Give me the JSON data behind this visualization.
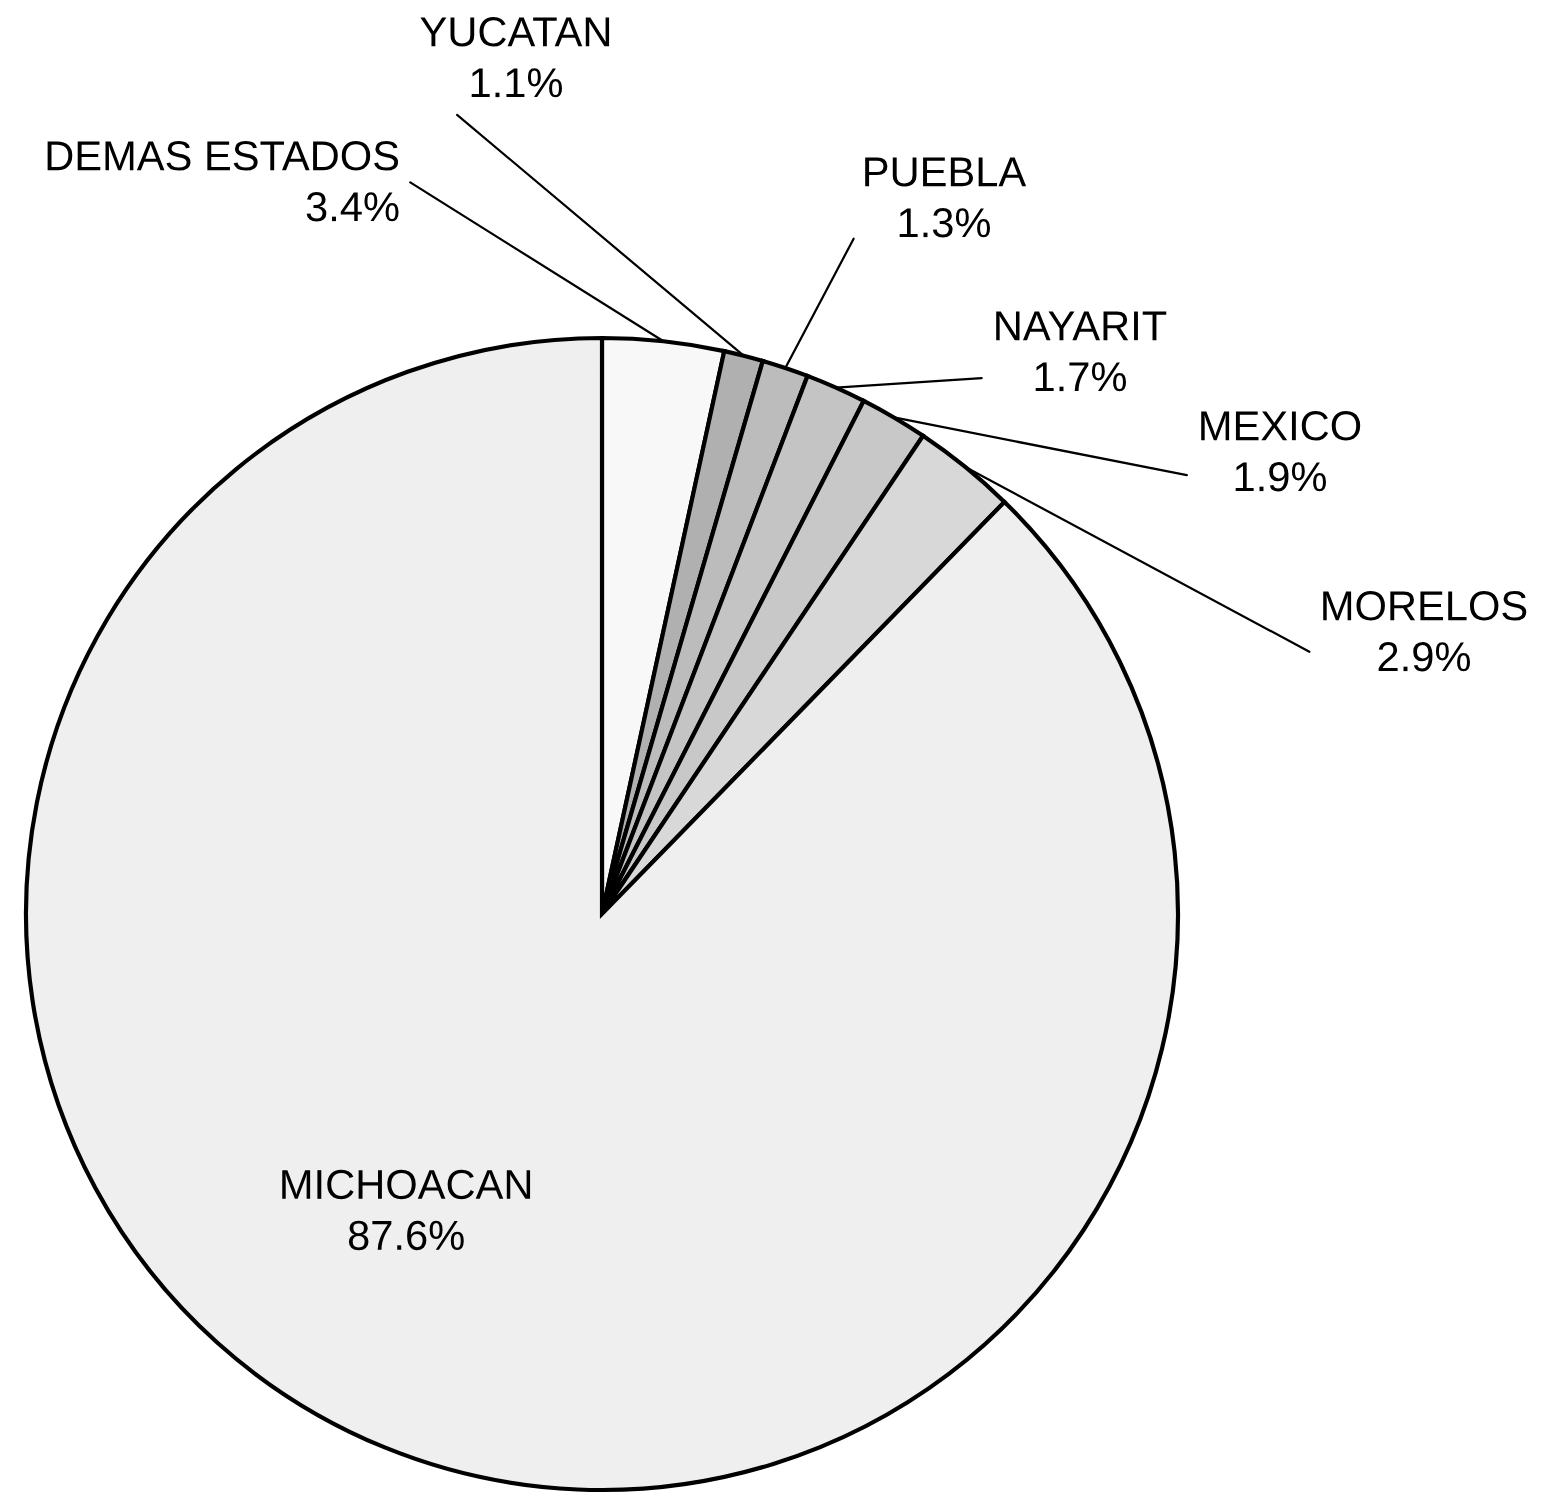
{
  "chart_data": {
    "type": "pie",
    "categories": [
      "DEMAS ESTADOS",
      "YUCATAN",
      "PUEBLA",
      "NAYARIT",
      "MEXICO",
      "MORELOS",
      "MICHOACAN"
    ],
    "values": [
      3.4,
      1.1,
      1.3,
      1.7,
      1.9,
      2.9,
      87.6
    ],
    "value_labels": [
      "3.4%",
      "1.1%",
      "1.3%",
      "1.7%",
      "1.9%",
      "2.9%",
      "87.6%"
    ],
    "colors": [
      "#f8f8f8",
      "#b0b0b0",
      "#bcbcbc",
      "#c4c4c4",
      "#c8c8c8",
      "#d8d8d8",
      "#efefef"
    ]
  }
}
